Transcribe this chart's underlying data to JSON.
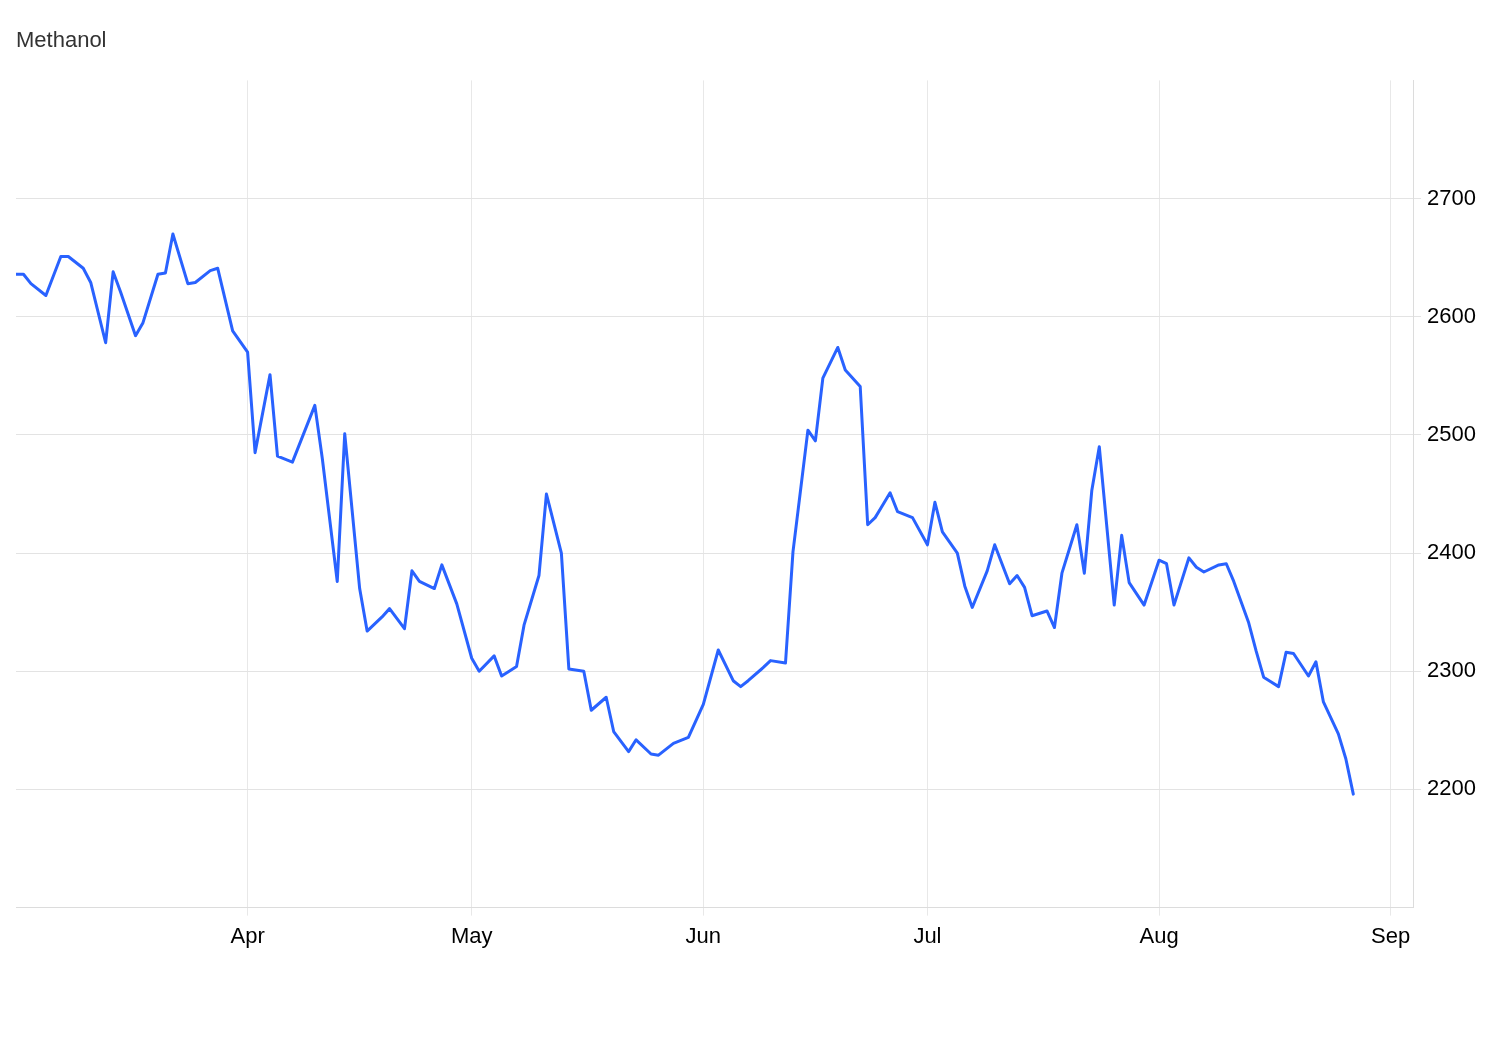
{
  "chart_data": {
    "type": "line",
    "title": "Methanol",
    "x": [
      "--03-01",
      "--03-02",
      "--03-03",
      "--03-05",
      "--03-07",
      "--03-08",
      "--03-10",
      "--03-11",
      "--03-13",
      "--03-14",
      "--03-15",
      "--03-17",
      "--03-18",
      "--03-20",
      "--03-21",
      "--03-22",
      "--03-24",
      "--03-25",
      "--03-27",
      "--03-28",
      "--03-30",
      "--04-01",
      "--04-02",
      "--04-04",
      "--04-05",
      "--04-07",
      "--04-10",
      "--04-11",
      "--04-13",
      "--04-14",
      "--04-16",
      "--04-17",
      "--04-19",
      "--04-20",
      "--04-22",
      "--04-23",
      "--04-24",
      "--04-26",
      "--04-27",
      "--04-29",
      "--05-01",
      "--05-02",
      "--05-04",
      "--05-05",
      "--05-07",
      "--05-08",
      "--05-10",
      "--05-11",
      "--05-13",
      "--05-14",
      "--05-16",
      "--05-17",
      "--05-19",
      "--05-20",
      "--05-22",
      "--05-23",
      "--05-25",
      "--05-26",
      "--05-28",
      "--05-30",
      "--06-01",
      "--06-03",
      "--06-05",
      "--06-06",
      "--06-07",
      "--06-09",
      "--06-10",
      "--06-12",
      "--06-13",
      "--06-15",
      "--06-16",
      "--06-17",
      "--06-19",
      "--06-20",
      "--06-22",
      "--06-23",
      "--06-24",
      "--06-26",
      "--06-27",
      "--06-29",
      "--07-01",
      "--07-02",
      "--07-03",
      "--07-05",
      "--07-06",
      "--07-07",
      "--07-09",
      "--07-10",
      "--07-12",
      "--07-13",
      "--07-14",
      "--07-15",
      "--07-17",
      "--07-18",
      "--07-19",
      "--07-21",
      "--07-22",
      "--07-23",
      "--07-24",
      "--07-26",
      "--07-27",
      "--07-28",
      "--07-30",
      "--08-01",
      "--08-02",
      "--08-03",
      "--08-05",
      "--08-06",
      "--08-07",
      "--08-09",
      "--08-10",
      "--08-11",
      "--08-13",
      "--08-14",
      "--08-15",
      "--08-17",
      "--08-18",
      "--08-19",
      "--08-21",
      "--08-22",
      "--08-23",
      "--08-25",
      "--08-26",
      "--08-27"
    ],
    "series": [
      {
        "color": "#2962ff",
        "values": [
          2636,
          2636,
          2628,
          2618,
          2651,
          2651,
          2641,
          2629,
          2578,
          2638,
          2621,
          2584,
          2595,
          2636,
          2637,
          2670,
          2628,
          2629,
          2639,
          2641,
          2588,
          2570,
          2485,
          2551,
          2482,
          2477,
          2525,
          2480,
          2376,
          2501,
          2370,
          2334,
          2346,
          2353,
          2336,
          2385,
          2376,
          2370,
          2390,
          2357,
          2311,
          2300,
          2313,
          2296,
          2304,
          2339,
          2381,
          2450,
          2400,
          2302,
          2300,
          2267,
          2278,
          2249,
          2232,
          2242,
          2230,
          2229,
          2239,
          2244,
          2272,
          2318,
          2292,
          2287,
          2292,
          2303,
          2309,
          2307,
          2401,
          2504,
          2495,
          2548,
          2574,
          2555,
          2541,
          2424,
          2430,
          2451,
          2435,
          2430,
          2407,
          2443,
          2418,
          2400,
          2372,
          2354,
          2385,
          2407,
          2374,
          2381,
          2371,
          2347,
          2351,
          2337,
          2383,
          2424,
          2383,
          2453,
          2490,
          2356,
          2415,
          2375,
          2356,
          2394,
          2391,
          2356,
          2396,
          2388,
          2384,
          2390,
          2391,
          2376,
          2341,
          2317,
          2295,
          2287,
          2316,
          2315,
          2296,
          2308,
          2274,
          2247,
          2226,
          2196
        ]
      }
    ],
    "xlim": [
      "--03-01",
      "--09-04"
    ],
    "xticks": [
      {
        "value": "--04-01",
        "label": "Apr"
      },
      {
        "value": "--05-01",
        "label": "May"
      },
      {
        "value": "--06-01",
        "label": "Jun"
      },
      {
        "value": "--07-01",
        "label": "Jul"
      },
      {
        "value": "--08-01",
        "label": "Aug"
      },
      {
        "value": "--09-01",
        "label": "Sep"
      }
    ],
    "ylim": [
      2100,
      2800
    ],
    "yticks": [
      2200,
      2300,
      2400,
      2500,
      2600,
      2700
    ],
    "grid": true,
    "legend": false,
    "marker": "none",
    "line_style": "solid"
  }
}
